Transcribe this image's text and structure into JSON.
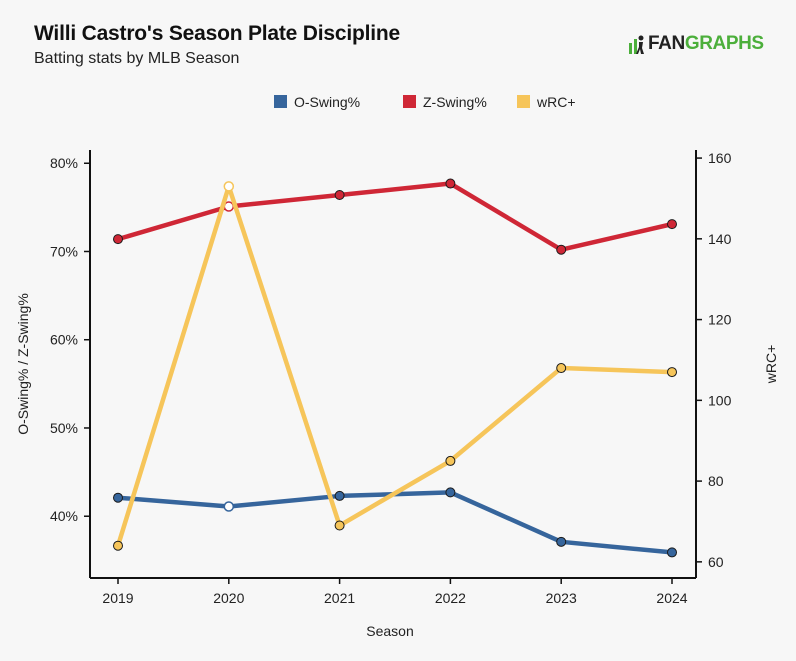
{
  "header": {
    "title": "Willi Castro's Season Plate Discipline",
    "subtitle": "Batting stats by MLB Season",
    "logo_fan": "FAN",
    "logo_graphs": "GRAPHS"
  },
  "chart_data": {
    "type": "line",
    "title": "Willi Castro's Season Plate Discipline",
    "subtitle": "Batting stats by MLB Season",
    "xlabel": "Season",
    "ylabel_left": "O-Swing% / Z-Swing%",
    "ylabel_right": "wRC+",
    "categories": [
      "2019",
      "2020",
      "2021",
      "2022",
      "2023",
      "2024"
    ],
    "ylim_left": [
      33,
      81.5
    ],
    "yticks_left": [
      40,
      50,
      60,
      70,
      80
    ],
    "ytick_labels_left": [
      "40%",
      "50%",
      "60%",
      "70%",
      "80%"
    ],
    "ylim_right": [
      56,
      162
    ],
    "yticks_right": [
      60,
      80,
      100,
      120,
      140,
      160
    ],
    "ytick_labels_right": [
      "60",
      "80",
      "100",
      "120",
      "140",
      "160"
    ],
    "legend_position": "top-center",
    "series": [
      {
        "name": "O-Swing%",
        "axis": "left",
        "color": "#36659c",
        "values": [
          42.1,
          41.1,
          42.3,
          42.7,
          37.1,
          35.9
        ],
        "hollow_index": 1
      },
      {
        "name": "Z-Swing%",
        "axis": "left",
        "color": "#cf2736",
        "values": [
          71.4,
          75.1,
          76.4,
          77.7,
          70.2,
          73.1
        ],
        "hollow_index": 1
      },
      {
        "name": "wRC+",
        "axis": "right",
        "color": "#f6c55a",
        "values": [
          64,
          153,
          69,
          85,
          108,
          107
        ],
        "hollow_index": 1
      }
    ]
  }
}
